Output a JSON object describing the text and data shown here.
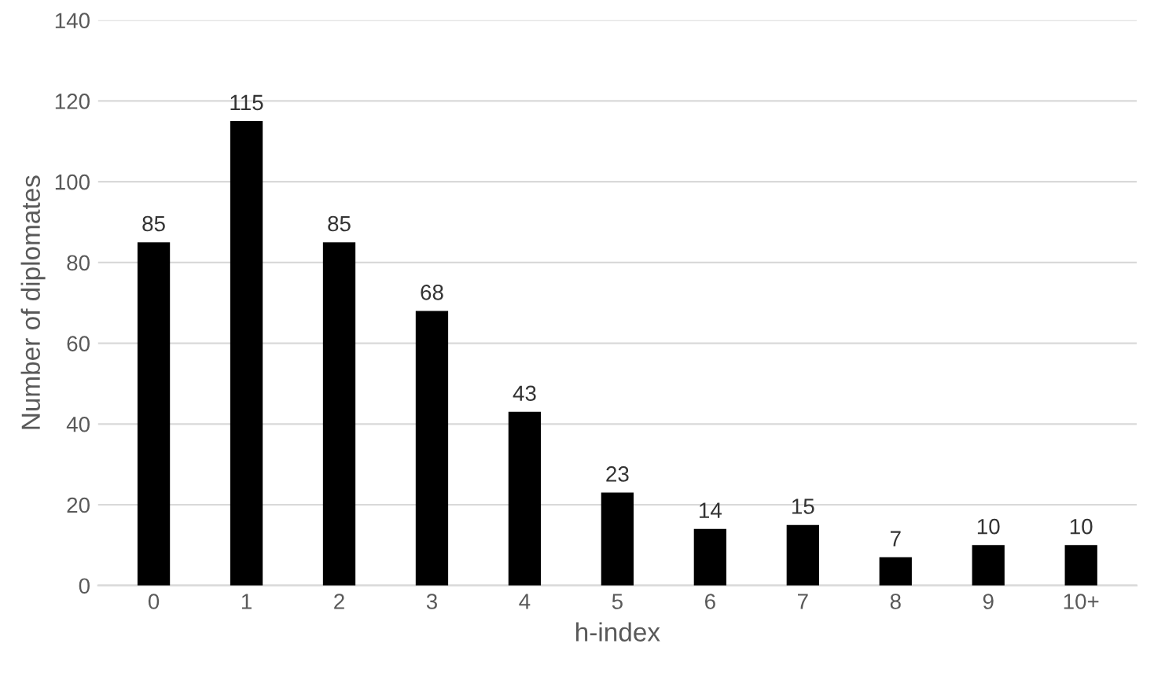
{
  "chart_data": {
    "type": "bar",
    "categories": [
      "0",
      "1",
      "2",
      "3",
      "4",
      "5",
      "6",
      "7",
      "8",
      "9",
      "10+"
    ],
    "values": [
      85,
      115,
      85,
      68,
      43,
      23,
      14,
      15,
      7,
      10,
      10
    ],
    "color": "#000000",
    "xlabel": "h-index",
    "ylabel": "Number of diplomates",
    "ylim": [
      0,
      140
    ],
    "yticks": [
      0,
      20,
      40,
      60,
      80,
      100,
      120,
      140
    ],
    "grid": "y",
    "data_labels": true,
    "legend": false
  }
}
